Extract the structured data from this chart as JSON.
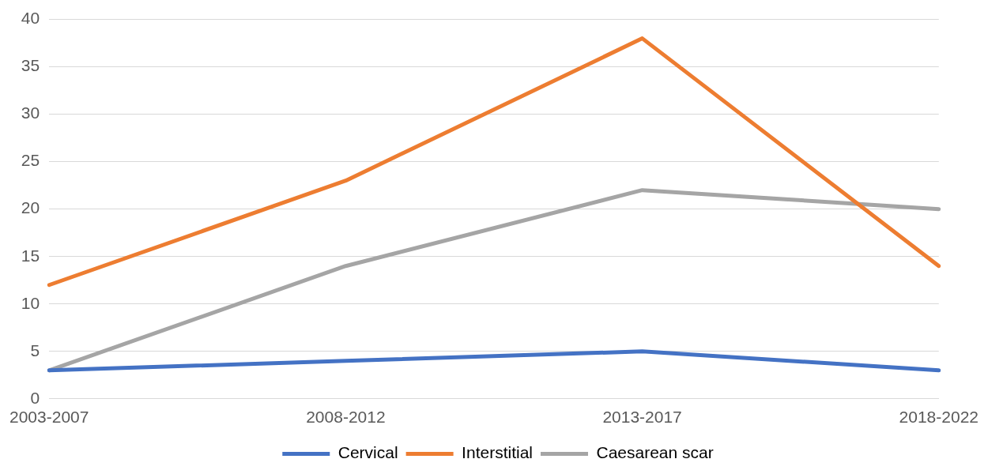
{
  "chart_data": {
    "type": "line",
    "categories": [
      "2003-2007",
      "2008-2012",
      "2013-2017",
      "2018-2022"
    ],
    "series": [
      {
        "name": "Cervical",
        "color": "#4472c4",
        "values": [
          3,
          4,
          5,
          3
        ]
      },
      {
        "name": "Interstitial",
        "color": "#ed7d31",
        "values": [
          12,
          23,
          38,
          14
        ]
      },
      {
        "name": "Caesarean scar",
        "color": "#a5a5a5",
        "values": [
          3,
          14,
          22,
          20
        ]
      }
    ],
    "ylim": [
      0,
      40
    ],
    "yticks": [
      0,
      5,
      10,
      15,
      20,
      25,
      30,
      35,
      40
    ],
    "grid": "y",
    "legend": "bottom",
    "marker": "none",
    "line_style": "solid"
  }
}
